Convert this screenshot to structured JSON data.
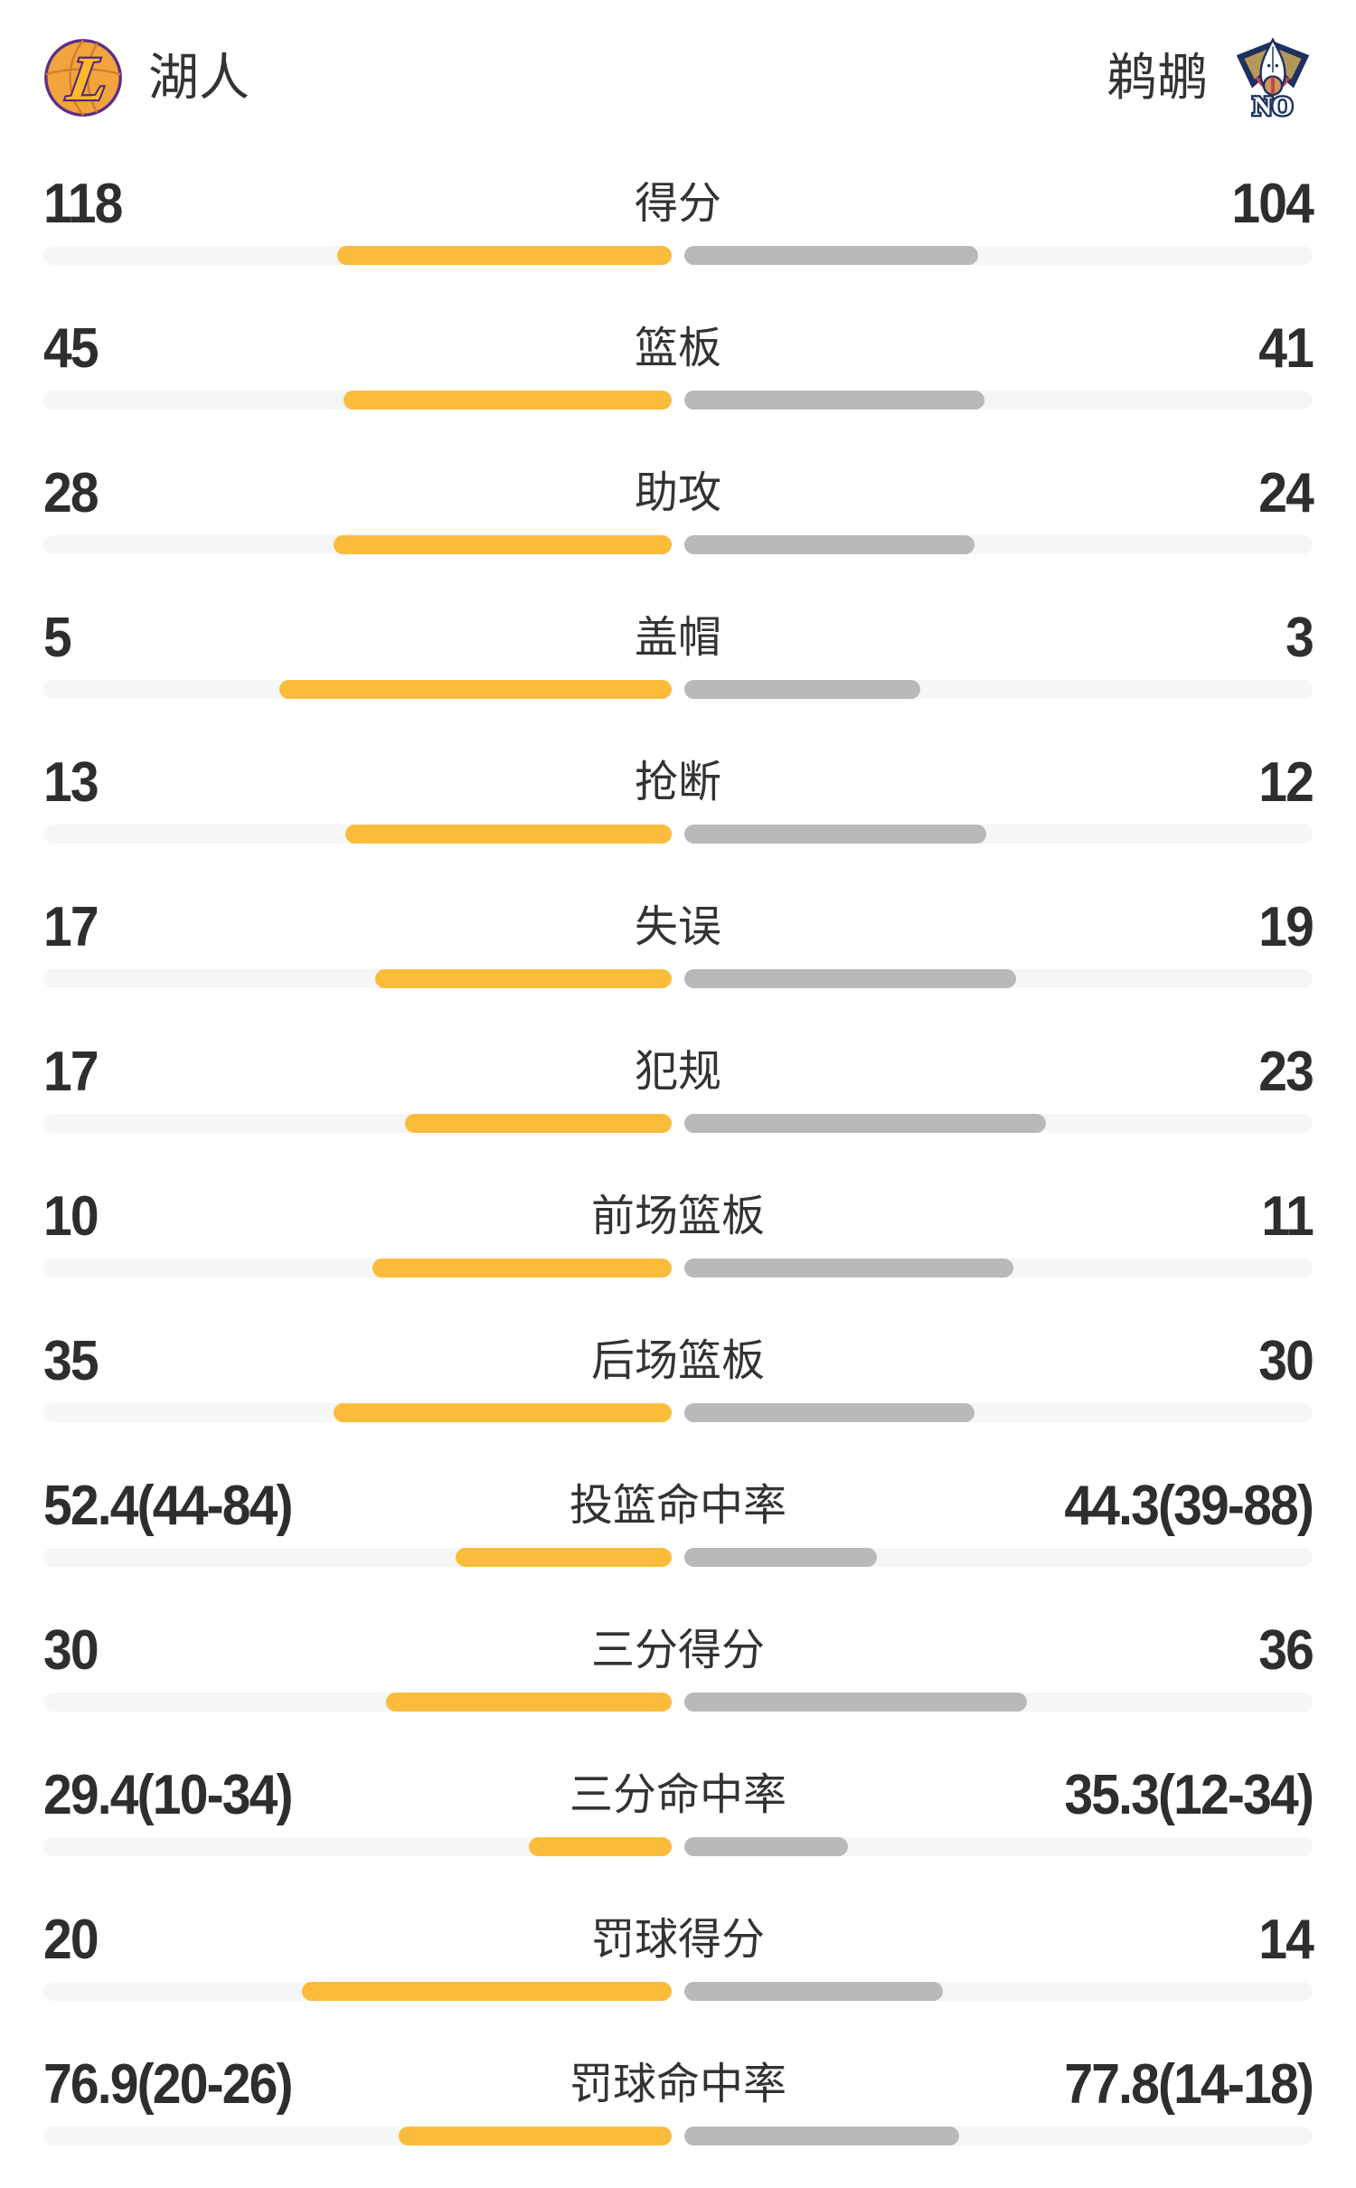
{
  "teams": {
    "home": {
      "name": "湖人",
      "logo_icon": "lakers-logo"
    },
    "away": {
      "name": "鹈鹕",
      "logo_icon": "pelicans-logo"
    }
  },
  "colors": {
    "home_bar": "#FBBC3C",
    "away_bar": "#B9B9B9",
    "bar_track": "#F5F6F8",
    "value_text": "#2E2E2E",
    "label_text": "#333333"
  },
  "stats": [
    {
      "label": "得分",
      "home": "118",
      "away": "104",
      "home_bar_pct": 53.2,
      "away_bar_pct": 46.8
    },
    {
      "label": "篮板",
      "home": "45",
      "away": "41",
      "home_bar_pct": 52.3,
      "away_bar_pct": 47.7
    },
    {
      "label": "助攻",
      "home": "28",
      "away": "24",
      "home_bar_pct": 53.8,
      "away_bar_pct": 46.2
    },
    {
      "label": "盖帽",
      "home": "5",
      "away": "3",
      "home_bar_pct": 62.5,
      "away_bar_pct": 37.5
    },
    {
      "label": "抢断",
      "home": "13",
      "away": "12",
      "home_bar_pct": 52.0,
      "away_bar_pct": 48.0
    },
    {
      "label": "失误",
      "home": "17",
      "away": "19",
      "home_bar_pct": 47.2,
      "away_bar_pct": 52.8
    },
    {
      "label": "犯规",
      "home": "17",
      "away": "23",
      "home_bar_pct": 42.5,
      "away_bar_pct": 57.5
    },
    {
      "label": "前场篮板",
      "home": "10",
      "away": "11",
      "home_bar_pct": 47.6,
      "away_bar_pct": 52.4
    },
    {
      "label": "后场篮板",
      "home": "35",
      "away": "30",
      "home_bar_pct": 53.8,
      "away_bar_pct": 46.2
    },
    {
      "label": "投篮命中率",
      "home": "52.4(44-84)",
      "away": "44.3(39-88)",
      "home_bar_pct": 34.4,
      "away_bar_pct": 30.7
    },
    {
      "label": "三分得分",
      "home": "30",
      "away": "36",
      "home_bar_pct": 45.5,
      "away_bar_pct": 54.5
    },
    {
      "label": "三分命中率",
      "home": "29.4(10-34)",
      "away": "35.3(12-34)",
      "home_bar_pct": 22.7,
      "away_bar_pct": 26.1
    },
    {
      "label": "罚球得分",
      "home": "20",
      "away": "14",
      "home_bar_pct": 58.8,
      "away_bar_pct": 41.2
    },
    {
      "label": "罚球命中率",
      "home": "76.9(20-26)",
      "away": "77.8(14-18)",
      "home_bar_pct": 43.5,
      "away_bar_pct": 43.8
    }
  ],
  "chart_data": {
    "type": "bar",
    "orientation": "horizontal_paired",
    "categories": [
      "得分",
      "篮板",
      "助攻",
      "盖帽",
      "抢断",
      "失误",
      "犯规",
      "前场篮板",
      "后场篮板",
      "投篮命中率",
      "三分得分",
      "三分命中率",
      "罚球得分",
      "罚球命中率"
    ],
    "series": [
      {
        "name": "湖人",
        "color": "#FBBC3C",
        "values": [
          118,
          45,
          28,
          5,
          13,
          17,
          17,
          10,
          35,
          52.4,
          30,
          29.4,
          20,
          76.9
        ]
      },
      {
        "name": "鹈鹕",
        "color": "#B9B9B9",
        "values": [
          104,
          41,
          24,
          3,
          12,
          19,
          23,
          11,
          30,
          44.3,
          36,
          35.3,
          14,
          77.8
        ]
      }
    ],
    "annotations": [
      "44-84",
      "39-88",
      "10-34",
      "12-34",
      "20-26",
      "14-18"
    ],
    "legend_position": "top",
    "grid": false
  }
}
